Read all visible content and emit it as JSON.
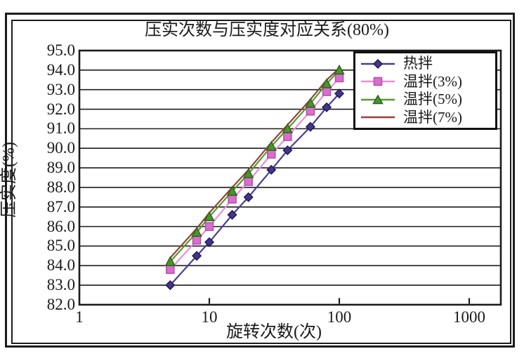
{
  "figure": {
    "title": "压实次数与压实度对应关系(80%)",
    "x_axis_label": "旋转次数(次)",
    "y_axis_label": "压实度(%)"
  },
  "chart_data": {
    "type": "line",
    "title": "压实次数与压实度对应关系(80%)",
    "xlabel": "旋转次数(次)",
    "ylabel": "压实度(%)",
    "x_scale": "log",
    "xlim": [
      1,
      1800
    ],
    "ylim": [
      82.0,
      95.0
    ],
    "x_tick_values": [
      1,
      10,
      100,
      1000
    ],
    "y_tick_values": [
      95,
      94,
      93,
      92,
      91,
      90,
      89,
      88,
      87,
      86,
      85,
      84,
      83,
      82
    ],
    "grid": "horizontal",
    "grid_color": "#1c1c1c",
    "legend_position": "top-right",
    "x": [
      5,
      8,
      10,
      15,
      20,
      30,
      40,
      60,
      80,
      100
    ],
    "series": [
      {
        "name": "热拌",
        "marker": "diamond",
        "line_color": "#4a3d96",
        "marker_fill": "#423787",
        "marker_edge": "#221a55",
        "values": [
          83.0,
          84.5,
          85.2,
          86.6,
          87.5,
          88.9,
          89.9,
          91.1,
          92.1,
          92.8
        ]
      },
      {
        "name": "温拌(3%)",
        "marker": "square",
        "line_color": "#e88fd8",
        "marker_fill": "#d86fce",
        "marker_edge": "#b84aae",
        "values": [
          83.8,
          85.3,
          86.0,
          87.4,
          88.3,
          89.7,
          90.6,
          91.9,
          92.9,
          93.6
        ]
      },
      {
        "name": "温拌(5%)",
        "marker": "triangle",
        "line_color": "#569a33",
        "marker_fill": "#4a9430",
        "marker_edge": "#2e6318",
        "values": [
          84.2,
          85.7,
          86.5,
          87.8,
          88.7,
          90.1,
          91.0,
          92.3,
          93.3,
          94.0
        ]
      },
      {
        "name": "温拌(7%)",
        "marker": "none",
        "line_color": "#96423a",
        "marker_fill": "#96423a",
        "marker_edge": "#96423a",
        "values": [
          84.4,
          85.9,
          86.7,
          88.0,
          88.9,
          90.3,
          91.2,
          92.5,
          93.5,
          94.1
        ]
      }
    ]
  }
}
